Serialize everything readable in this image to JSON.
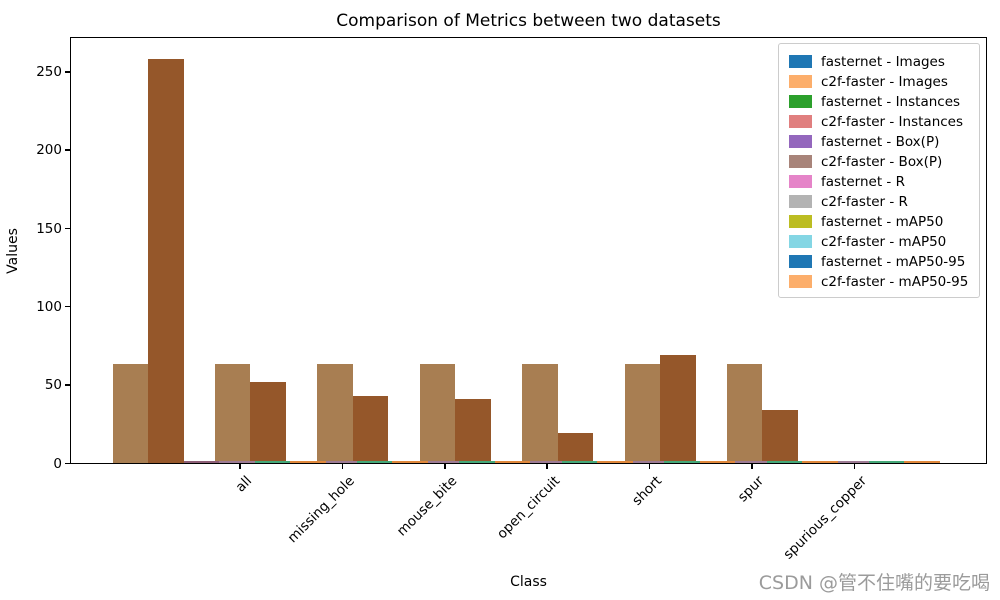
{
  "title": "Comparison of Metrics between two datasets",
  "xlabel": "Class",
  "ylabel": "Values",
  "watermark": "CSDN @管不住嘴的要吃喝",
  "yticks": [
    0,
    50,
    100,
    150,
    200,
    250
  ],
  "legend": [
    {
      "label": "fasternet - Images",
      "color": "#1f77b4"
    },
    {
      "label": "c2f-faster - Images",
      "color": "#fcae6b"
    },
    {
      "label": "fasternet - Instances",
      "color": "#2ca02c"
    },
    {
      "label": "c2f-faster - Instances",
      "color": "#e07f7f"
    },
    {
      "label": "fasternet - Box(P)",
      "color": "#9467bd"
    },
    {
      "label": "c2f-faster - Box(P)",
      "color": "#a8847a"
    },
    {
      "label": "fasternet - R",
      "color": "#e584c8"
    },
    {
      "label": "c2f-faster - R",
      "color": "#b3b3b3"
    },
    {
      "label": "fasternet - mAP50",
      "color": "#bcbd22"
    },
    {
      "label": "c2f-faster - mAP50",
      "color": "#84d6e4"
    },
    {
      "label": "fasternet - mAP50-95",
      "color": "#1f77b4"
    },
    {
      "label": "c2f-faster - mAP50-95",
      "color": "#fcae6b"
    }
  ],
  "rendered_metric_blend_colors": {
    "Images": "#a87e52",
    "Instances": "#95572a",
    "Box(P)": "#8d5f77",
    "R": "#9d7b94",
    "mAP50": "#45a878",
    "mAP50-95": "#e0883c"
  },
  "chart_data": {
    "type": "bar",
    "title": "Comparison of Metrics between two datasets",
    "xlabel": "Class",
    "ylabel": "Values",
    "ylim": [
      0,
      272
    ],
    "grid": false,
    "legend_position": "upper right",
    "categories": [
      "all",
      "missing_hole",
      "mouse_bite",
      "open_circuit",
      "short",
      "spur",
      "spurious_copper"
    ],
    "metrics": [
      "Images",
      "Instances",
      "Box(P)",
      "R",
      "mAP50",
      "mAP50-95"
    ],
    "note": "fasternet and c2f-faster bars are drawn overlapped at the same x offsets (c2f-faster semi-transparent), producing blended tan/brown bars; metric values below 1 appear as thin slivers at the axis",
    "series": [
      {
        "name": "fasternet - Images",
        "values": [
          63,
          63,
          63,
          63,
          63,
          63,
          63
        ]
      },
      {
        "name": "c2f-faster - Images",
        "values": [
          63,
          63,
          63,
          63,
          63,
          63,
          63
        ]
      },
      {
        "name": "fasternet - Instances",
        "values": [
          258,
          52,
          43,
          41,
          19,
          69,
          34
        ]
      },
      {
        "name": "c2f-faster - Instances",
        "values": [
          258,
          52,
          43,
          41,
          19,
          69,
          34
        ]
      },
      {
        "name": "fasternet - Box(P)",
        "values": [
          0.9,
          0.9,
          0.9,
          0.9,
          0.9,
          0.9,
          0.9
        ]
      },
      {
        "name": "c2f-faster - Box(P)",
        "values": [
          0.9,
          0.9,
          0.9,
          0.9,
          0.9,
          0.9,
          0.9
        ]
      },
      {
        "name": "fasternet - R",
        "values": [
          0.9,
          0.9,
          0.9,
          0.9,
          0.9,
          0.9,
          0.9
        ]
      },
      {
        "name": "c2f-faster - R",
        "values": [
          0.9,
          0.9,
          0.9,
          0.9,
          0.9,
          0.9,
          0.9
        ]
      },
      {
        "name": "fasternet - mAP50",
        "values": [
          0.9,
          0.9,
          0.9,
          0.9,
          0.9,
          0.9,
          0.9
        ]
      },
      {
        "name": "c2f-faster - mAP50",
        "values": [
          0.9,
          0.9,
          0.9,
          0.9,
          0.9,
          0.9,
          0.9
        ]
      },
      {
        "name": "fasternet - mAP50-95",
        "values": [
          0.5,
          0.5,
          0.5,
          0.5,
          0.5,
          0.5,
          0.5
        ]
      },
      {
        "name": "c2f-faster - mAP50-95",
        "values": [
          0.5,
          0.5,
          0.5,
          0.5,
          0.5,
          0.5,
          0.5
        ]
      }
    ]
  }
}
